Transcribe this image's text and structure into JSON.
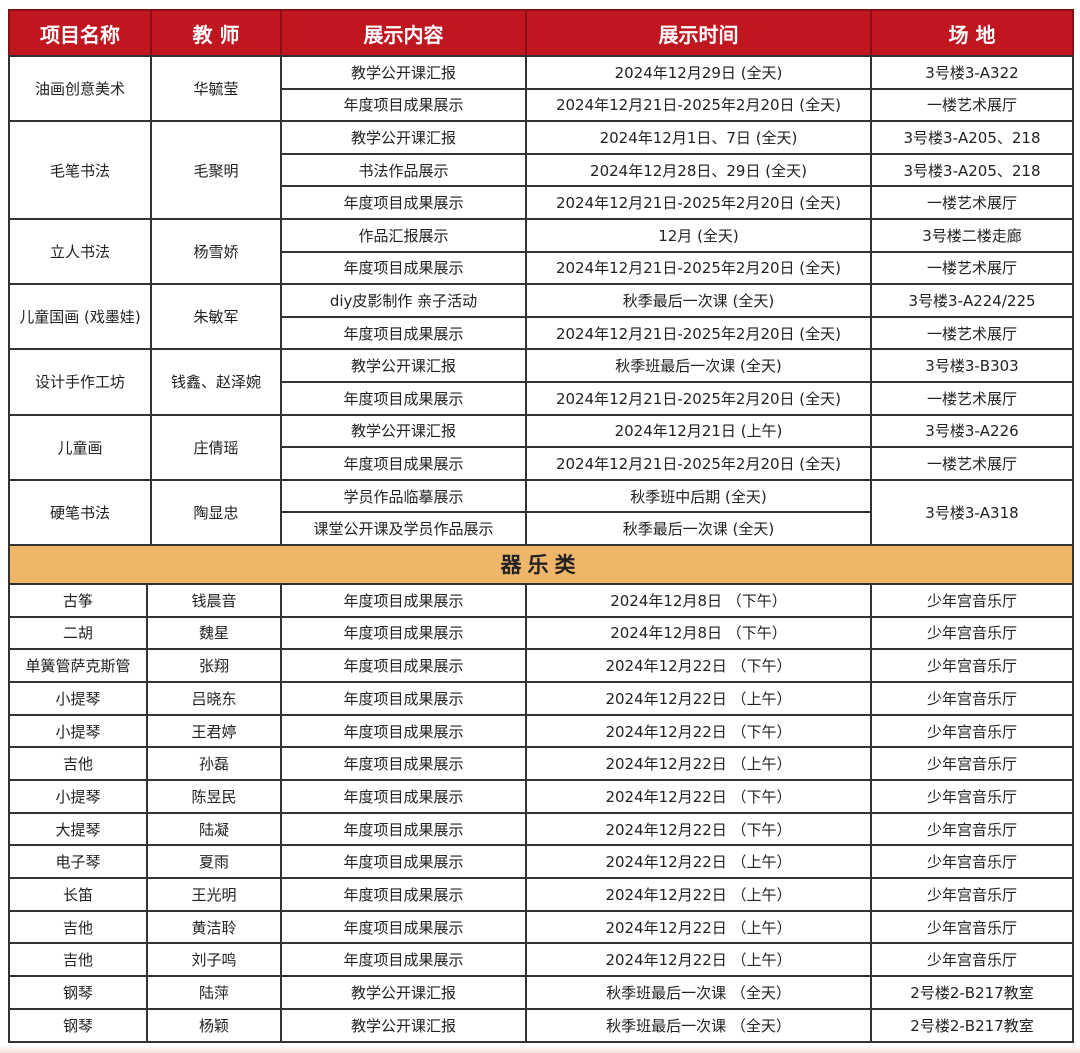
{
  "header": [
    "项目名称",
    "教 师",
    "展示内容",
    "展示时间",
    "场 地"
  ],
  "colors": {
    "header_bg": "#c0161f",
    "category_bg": "#efb66a"
  },
  "art_groups": [
    {
      "project": "油画创意美术",
      "teacher": "华毓莹",
      "rows": [
        {
          "content": "教学公开课汇报",
          "time": "2024年12月29日 (全天)",
          "venue": "3号楼3-A322"
        },
        {
          "content": "年度项目成果展示",
          "time": "2024年12月21日-2025年2月20日 (全天)",
          "venue": "一楼艺术展厅"
        }
      ]
    },
    {
      "project": "毛笔书法",
      "teacher": "毛聚明",
      "rows": [
        {
          "content": "教学公开课汇报",
          "time": "2024年12月1日、7日 (全天)",
          "venue": "3号楼3-A205、218"
        },
        {
          "content": "书法作品展示",
          "time": "2024年12月28日、29日 (全天)",
          "venue": "3号楼3-A205、218"
        },
        {
          "content": "年度项目成果展示",
          "time": "2024年12月21日-2025年2月20日 (全天)",
          "venue": "一楼艺术展厅"
        }
      ]
    },
    {
      "project": "立人书法",
      "teacher": "杨雪娇",
      "rows": [
        {
          "content": "作品汇报展示",
          "time": "12月 (全天)",
          "venue": "3号楼二楼走廊"
        },
        {
          "content": "年度项目成果展示",
          "time": "2024年12月21日-2025年2月20日 (全天)",
          "venue": "一楼艺术展厅"
        }
      ]
    },
    {
      "project": "儿童国画 (戏墨娃)",
      "teacher": "朱敏军",
      "rows": [
        {
          "content": "diy皮影制作 亲子活动",
          "time": "秋季最后一次课 (全天)",
          "venue": "3号楼3-A224/225"
        },
        {
          "content": "年度项目成果展示",
          "time": "2024年12月21日-2025年2月20日 (全天)",
          "venue": "一楼艺术展厅"
        }
      ]
    },
    {
      "project": "设计手作工坊",
      "teacher": "钱鑫、赵泽婉",
      "rows": [
        {
          "content": "教学公开课汇报",
          "time": "秋季班最后一次课 (全天)",
          "venue": "3号楼3-B303"
        },
        {
          "content": "年度项目成果展示",
          "time": "2024年12月21日-2025年2月20日 (全天)",
          "venue": "一楼艺术展厅"
        }
      ]
    },
    {
      "project": "儿童画",
      "teacher": "庄倩瑶",
      "rows": [
        {
          "content": "教学公开课汇报",
          "time": "2024年12月21日 (上午)",
          "venue": "3号楼3-A226"
        },
        {
          "content": "年度项目成果展示",
          "time": "2024年12月21日-2025年2月20日 (全天)",
          "venue": "一楼艺术展厅"
        }
      ]
    },
    {
      "project": "硬笔书法",
      "teacher": "陶显忠",
      "merged_venue": "3号楼3-A318",
      "rows": [
        {
          "content": "学员作品临摹展示",
          "time": "秋季班中后期 (全天)"
        },
        {
          "content": "课堂公开课及学员作品展示",
          "time": "秋季最后一次课 (全天)"
        }
      ]
    }
  ],
  "category": "器乐类",
  "music_rows": [
    {
      "project": "古筝",
      "teacher": "钱晨音",
      "content": "年度项目成果展示",
      "time": "2024年12月8日 （下午）",
      "venue": "少年宫音乐厅"
    },
    {
      "project": "二胡",
      "teacher": "魏星",
      "content": "年度项目成果展示",
      "time": "2024年12月8日 （下午）",
      "venue": "少年宫音乐厅"
    },
    {
      "project": "单簧管萨克斯管",
      "teacher": "张翔",
      "content": "年度项目成果展示",
      "time": "2024年12月22日 （下午）",
      "venue": "少年宫音乐厅"
    },
    {
      "project": "小提琴",
      "teacher": "吕晓东",
      "content": "年度项目成果展示",
      "time": "2024年12月22日 （上午）",
      "venue": "少年宫音乐厅"
    },
    {
      "project": "小提琴",
      "teacher": "王君婷",
      "content": "年度项目成果展示",
      "time": "2024年12月22日 （下午）",
      "venue": "少年宫音乐厅"
    },
    {
      "project": "吉他",
      "teacher": "孙磊",
      "content": "年度项目成果展示",
      "time": "2024年12月22日 （上午）",
      "venue": "少年宫音乐厅"
    },
    {
      "project": "小提琴",
      "teacher": "陈昱民",
      "content": "年度项目成果展示",
      "time": "2024年12月22日 （下午）",
      "venue": "少年宫音乐厅"
    },
    {
      "project": "大提琴",
      "teacher": "陆凝",
      "content": "年度项目成果展示",
      "time": "2024年12月22日 （下午）",
      "venue": "少年宫音乐厅"
    },
    {
      "project": "电子琴",
      "teacher": "夏雨",
      "content": "年度项目成果展示",
      "time": "2024年12月22日 （上午）",
      "venue": "少年宫音乐厅"
    },
    {
      "project": "长笛",
      "teacher": "王光明",
      "content": "年度项目成果展示",
      "time": "2024年12月22日 （上午）",
      "venue": "少年宫音乐厅"
    },
    {
      "project": "吉他",
      "teacher": "黄洁聆",
      "content": "年度项目成果展示",
      "time": "2024年12月22日 （上午）",
      "venue": "少年宫音乐厅"
    },
    {
      "project": "吉他",
      "teacher": "刘子鸣",
      "content": "年度项目成果展示",
      "time": "2024年12月22日 （上午）",
      "venue": "少年宫音乐厅"
    },
    {
      "project": "钢琴",
      "teacher": "陆萍",
      "content": "教学公开课汇报",
      "time": "秋季班最后一次课 （全天）",
      "venue": "2号楼2-B217教室"
    },
    {
      "project": "钢琴",
      "teacher": "杨颖",
      "content": "教学公开课汇报",
      "time": "秋季班最后一次课 （全天）",
      "venue": "2号楼2-B217教室"
    }
  ]
}
